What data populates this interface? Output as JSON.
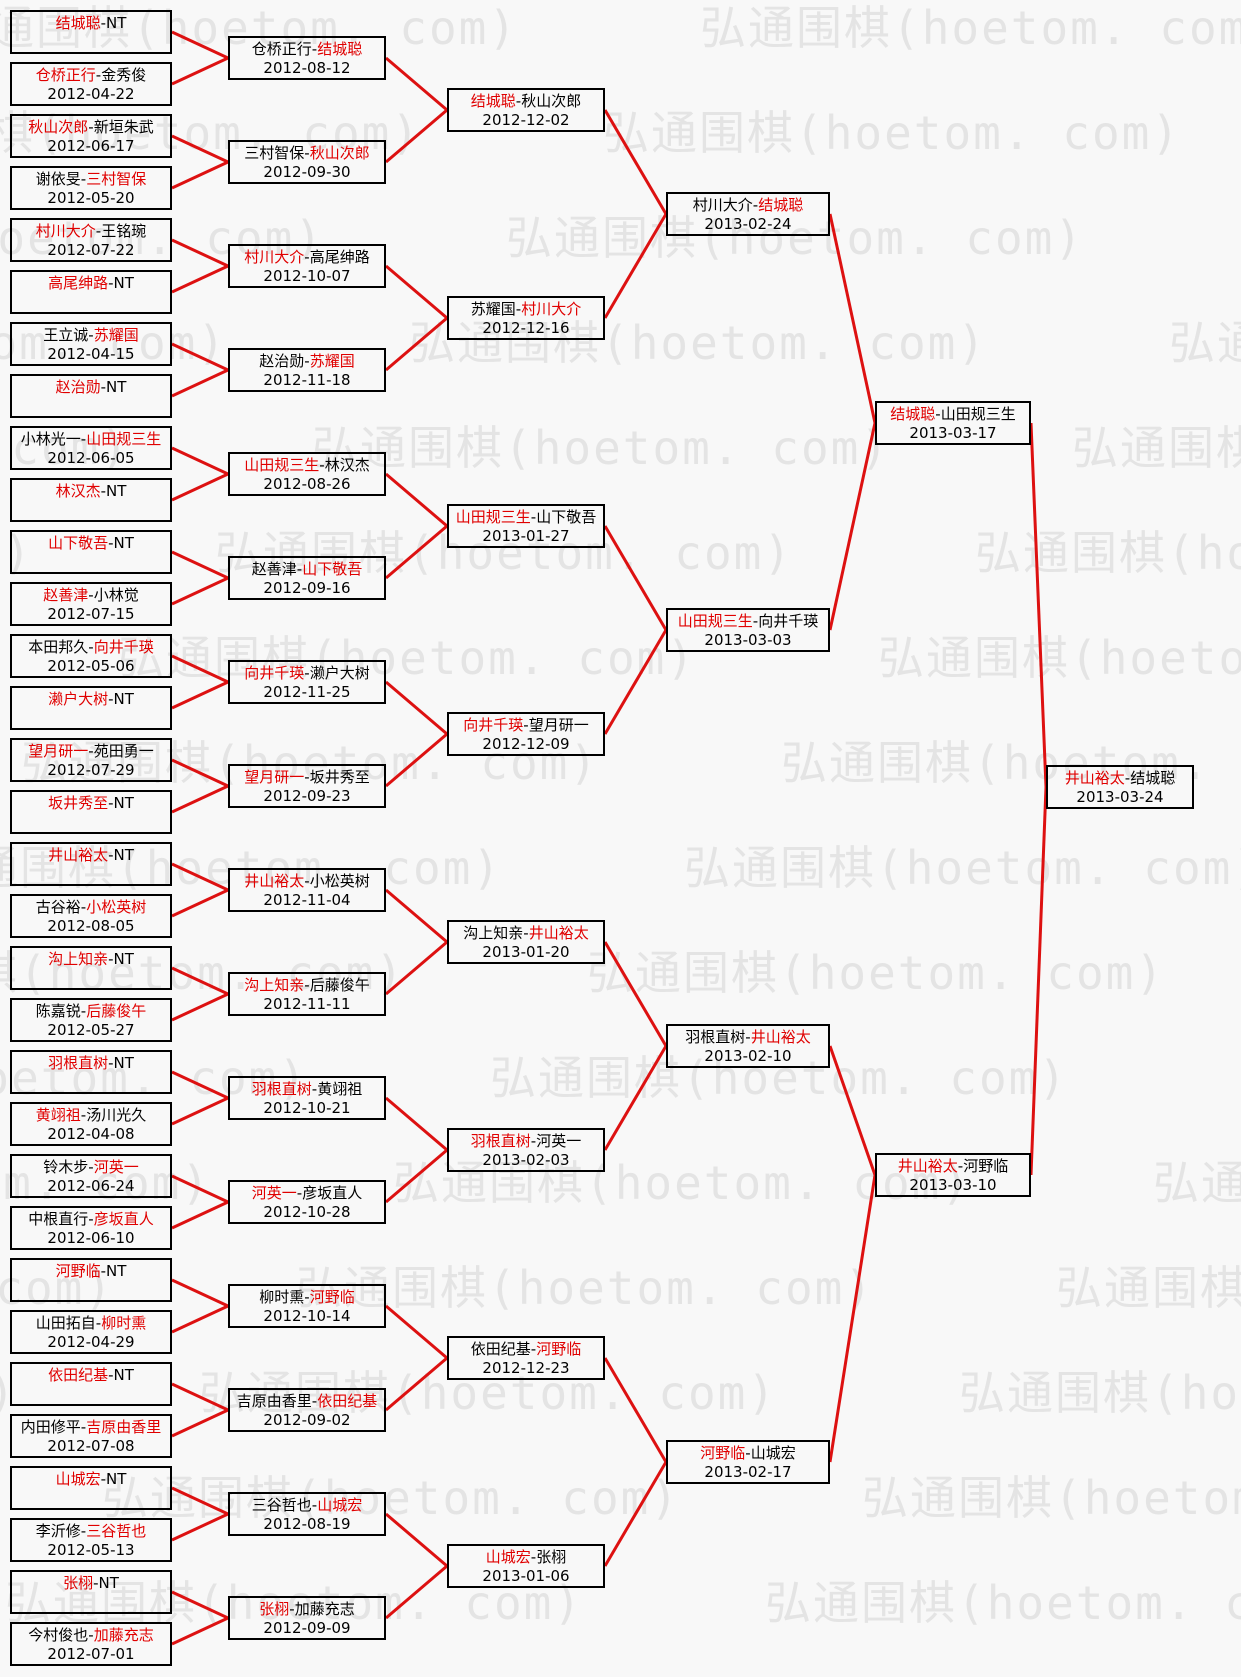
{
  "watermark": {
    "text": "弘通围棋(hoetom. com)"
  },
  "separator": "-",
  "colors": {
    "winner_red": "#e00000",
    "connector_red": "#dd1111",
    "box_border": "#000000",
    "page_background": "#f8f8f8",
    "watermark_gray": "#e4e4e4",
    "loser_black": "#000000"
  },
  "rounds": [
    {
      "name": "round-1",
      "matches": [
        {
          "p1": "结城聪",
          "p2": "NT",
          "date": "",
          "winner": 1
        },
        {
          "p1": "仓桥正行",
          "p2": "金秀俊",
          "date": "2012-04-22",
          "winner": 1
        },
        {
          "p1": "秋山次郎",
          "p2": "新垣朱武",
          "date": "2012-06-17",
          "winner": 1
        },
        {
          "p1": "谢依旻",
          "p2": "三村智保",
          "date": "2012-05-20",
          "winner": 2
        },
        {
          "p1": "村川大介",
          "p2": "王铭琬",
          "date": "2012-07-22",
          "winner": 1
        },
        {
          "p1": "高尾绅路",
          "p2": "NT",
          "date": "",
          "winner": 1
        },
        {
          "p1": "王立诚",
          "p2": "苏耀国",
          "date": "2012-04-15",
          "winner": 2
        },
        {
          "p1": "赵治勋",
          "p2": "NT",
          "date": "",
          "winner": 1
        },
        {
          "p1": "小林光一",
          "p2": "山田规三生",
          "date": "2012-06-05",
          "winner": 2
        },
        {
          "p1": "林汉杰",
          "p2": "NT",
          "date": "",
          "winner": 1
        },
        {
          "p1": "山下敬吾",
          "p2": "NT",
          "date": "",
          "winner": 1
        },
        {
          "p1": "赵善津",
          "p2": "小林觉",
          "date": "2012-07-15",
          "winner": 1
        },
        {
          "p1": "本田邦久",
          "p2": "向井千瑛",
          "date": "2012-05-06",
          "winner": 2
        },
        {
          "p1": "濑户大树",
          "p2": "NT",
          "date": "",
          "winner": 1
        },
        {
          "p1": "望月研一",
          "p2": "苑田勇一",
          "date": "2012-07-29",
          "winner": 1
        },
        {
          "p1": "坂井秀至",
          "p2": "NT",
          "date": "",
          "winner": 1
        },
        {
          "p1": "井山裕太",
          "p2": "NT",
          "date": "",
          "winner": 1
        },
        {
          "p1": "古谷裕",
          "p2": "小松英树",
          "date": "2012-08-05",
          "winner": 2
        },
        {
          "p1": "沟上知亲",
          "p2": "NT",
          "date": "",
          "winner": 1
        },
        {
          "p1": "陈嘉锐",
          "p2": "后藤俊午",
          "date": "2012-05-27",
          "winner": 2
        },
        {
          "p1": "羽根直树",
          "p2": "NT",
          "date": "",
          "winner": 1
        },
        {
          "p1": "黄翊祖",
          "p2": "汤川光久",
          "date": "2012-04-08",
          "winner": 1
        },
        {
          "p1": "铃木步",
          "p2": "河英一",
          "date": "2012-06-24",
          "winner": 2
        },
        {
          "p1": "中根直行",
          "p2": "彦坂直人",
          "date": "2012-06-10",
          "winner": 2
        },
        {
          "p1": "河野临",
          "p2": "NT",
          "date": "",
          "winner": 1
        },
        {
          "p1": "山田拓自",
          "p2": "柳时熏",
          "date": "2012-04-29",
          "winner": 2
        },
        {
          "p1": "依田纪基",
          "p2": "NT",
          "date": "",
          "winner": 1
        },
        {
          "p1": "内田修平",
          "p2": "吉原由香里",
          "date": "2012-07-08",
          "winner": 2
        },
        {
          "p1": "山城宏",
          "p2": "NT",
          "date": "",
          "winner": 1
        },
        {
          "p1": "李沂修",
          "p2": "三谷哲也",
          "date": "2012-05-13",
          "winner": 2
        },
        {
          "p1": "张栩",
          "p2": "NT",
          "date": "",
          "winner": 1
        },
        {
          "p1": "今村俊也",
          "p2": "加藤充志",
          "date": "2012-07-01",
          "winner": 2
        }
      ]
    },
    {
      "name": "round-2",
      "matches": [
        {
          "p1": "仓桥正行",
          "p2": "结城聪",
          "date": "2012-08-12",
          "winner": 2
        },
        {
          "p1": "三村智保",
          "p2": "秋山次郎",
          "date": "2012-09-30",
          "winner": 2
        },
        {
          "p1": "村川大介",
          "p2": "高尾绅路",
          "date": "2012-10-07",
          "winner": 1
        },
        {
          "p1": "赵治勋",
          "p2": "苏耀国",
          "date": "2012-11-18",
          "winner": 2
        },
        {
          "p1": "山田规三生",
          "p2": "林汉杰",
          "date": "2012-08-26",
          "winner": 1
        },
        {
          "p1": "赵善津",
          "p2": "山下敬吾",
          "date": "2012-09-16",
          "winner": 2
        },
        {
          "p1": "向井千瑛",
          "p2": "濑户大树",
          "date": "2012-11-25",
          "winner": 1
        },
        {
          "p1": "望月研一",
          "p2": "坂井秀至",
          "date": "2012-09-23",
          "winner": 1
        },
        {
          "p1": "井山裕太",
          "p2": "小松英树",
          "date": "2012-11-04",
          "winner": 1
        },
        {
          "p1": "沟上知亲",
          "p2": "后藤俊午",
          "date": "2012-11-11",
          "winner": 1
        },
        {
          "p1": "羽根直树",
          "p2": "黄翊祖",
          "date": "2012-10-21",
          "winner": 1
        },
        {
          "p1": "河英一",
          "p2": "彦坂直人",
          "date": "2012-10-28",
          "winner": 1
        },
        {
          "p1": "柳时熏",
          "p2": "河野临",
          "date": "2012-10-14",
          "winner": 2
        },
        {
          "p1": "吉原由香里",
          "p2": "依田纪基",
          "date": "2012-09-02",
          "winner": 2
        },
        {
          "p1": "三谷哲也",
          "p2": "山城宏",
          "date": "2012-08-19",
          "winner": 2
        },
        {
          "p1": "张栩",
          "p2": "加藤充志",
          "date": "2012-09-09",
          "winner": 1
        }
      ]
    },
    {
      "name": "round-3",
      "matches": [
        {
          "p1": "结城聪",
          "p2": "秋山次郎",
          "date": "2012-12-02",
          "winner": 1
        },
        {
          "p1": "苏耀国",
          "p2": "村川大介",
          "date": "2012-12-16",
          "winner": 2
        },
        {
          "p1": "山田规三生",
          "p2": "山下敬吾",
          "date": "2013-01-27",
          "winner": 1
        },
        {
          "p1": "向井千瑛",
          "p2": "望月研一",
          "date": "2012-12-09",
          "winner": 1
        },
        {
          "p1": "沟上知亲",
          "p2": "井山裕太",
          "date": "2013-01-20",
          "winner": 2
        },
        {
          "p1": "羽根直树",
          "p2": "河英一",
          "date": "2013-02-03",
          "winner": 1
        },
        {
          "p1": "依田纪基",
          "p2": "河野临",
          "date": "2012-12-23",
          "winner": 2
        },
        {
          "p1": "山城宏",
          "p2": "张栩",
          "date": "2013-01-06",
          "winner": 1
        }
      ]
    },
    {
      "name": "quarterfinals",
      "matches": [
        {
          "p1": "村川大介",
          "p2": "结城聪",
          "date": "2013-02-24",
          "winner": 2
        },
        {
          "p1": "山田规三生",
          "p2": "向井千瑛",
          "date": "2013-03-03",
          "winner": 1
        },
        {
          "p1": "羽根直树",
          "p2": "井山裕太",
          "date": "2013-02-10",
          "winner": 2
        },
        {
          "p1": "河野临",
          "p2": "山城宏",
          "date": "2013-02-17",
          "winner": 1
        }
      ]
    },
    {
      "name": "semifinals",
      "matches": [
        {
          "p1": "结城聪",
          "p2": "山田规三生",
          "date": "2013-03-17",
          "winner": 1
        },
        {
          "p1": "井山裕太",
          "p2": "河野临",
          "date": "2013-03-10",
          "winner": 1
        }
      ]
    },
    {
      "name": "final",
      "matches": [
        {
          "p1": "井山裕太",
          "p2": "结城聪",
          "date": "2013-03-24",
          "winner": 1
        }
      ]
    }
  ]
}
